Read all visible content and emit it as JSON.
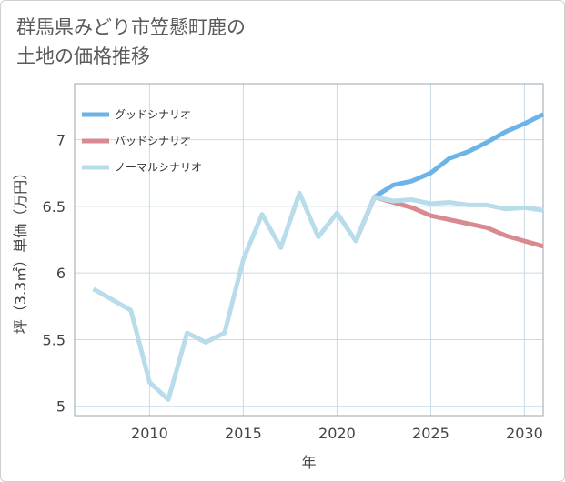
{
  "title": {
    "line1": "群馬県みどり市笠懸町鹿の",
    "line2": "土地の価格推移"
  },
  "colors": {
    "good": "#6cb4e8",
    "bad": "#d98a90",
    "normal": "#b9dcea",
    "grid": "#c6dbe6",
    "plot_border": "#9aa7b0"
  },
  "chart_data": {
    "type": "line",
    "title": "群馬県みどり市笠懸町鹿の土地の価格推移",
    "xlabel": "年",
    "ylabel": "坪（3.3㎡）単価（万円）",
    "xlim": [
      2006,
      2031
    ],
    "ylim": [
      4.93,
      7.42
    ],
    "xticks": [
      2010,
      2015,
      2020,
      2025,
      2030
    ],
    "xtick_labels": [
      "2010",
      "2015",
      "2020",
      "2025",
      "2030"
    ],
    "yticks": [
      5,
      5.5,
      6,
      6.5,
      7
    ],
    "ytick_labels": [
      "5",
      "5.5",
      "6",
      "6.5",
      "7"
    ],
    "legend_position": "top-left",
    "series": [
      {
        "key": "good",
        "name": "グッドシナリオ",
        "x": [
          2021,
          2022,
          2023,
          2024,
          2025,
          2026,
          2027,
          2028,
          2029,
          2030,
          2031
        ],
        "y": [
          6.24,
          6.57,
          6.66,
          6.69,
          6.75,
          6.86,
          6.91,
          6.98,
          7.06,
          7.12,
          7.19
        ]
      },
      {
        "key": "bad",
        "name": "バッドシナリオ",
        "x": [
          2021,
          2022,
          2023,
          2024,
          2025,
          2026,
          2027,
          2028,
          2029,
          2030,
          2031
        ],
        "y": [
          6.24,
          6.57,
          6.53,
          6.49,
          6.43,
          6.4,
          6.37,
          6.34,
          6.28,
          6.24,
          6.2
        ]
      },
      {
        "key": "normal",
        "name": "ノーマルシナリオ",
        "x": [
          2007,
          2008,
          2009,
          2010,
          2011,
          2012,
          2013,
          2014,
          2015,
          2016,
          2017,
          2018,
          2019,
          2020,
          2021,
          2022,
          2023,
          2024,
          2025,
          2026,
          2027,
          2028,
          2029,
          2030,
          2031
        ],
        "y": [
          5.88,
          5.8,
          5.72,
          5.18,
          5.05,
          5.55,
          5.48,
          5.55,
          6.1,
          6.44,
          6.19,
          6.6,
          6.27,
          6.45,
          6.24,
          6.57,
          6.54,
          6.55,
          6.52,
          6.53,
          6.51,
          6.51,
          6.48,
          6.49,
          6.47
        ]
      }
    ]
  }
}
